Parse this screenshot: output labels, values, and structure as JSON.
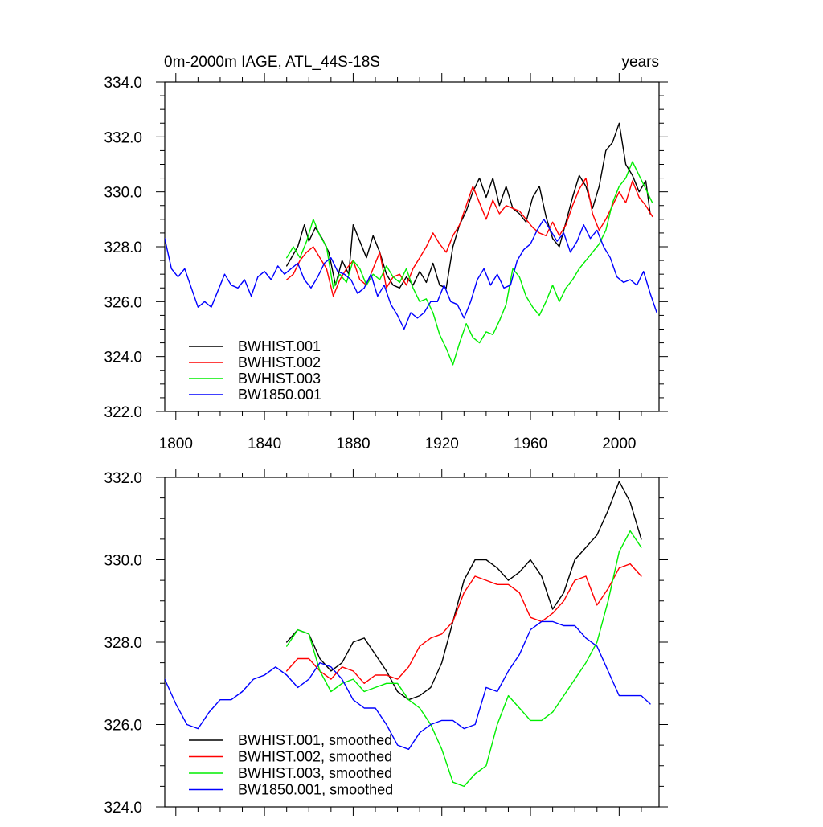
{
  "chart_data": [
    {
      "type": "line",
      "title": "0m-2000m IAGE, ATL_44S-18S",
      "units": "years",
      "xlim": [
        1795,
        2018
      ],
      "ylim": [
        322,
        334
      ],
      "x_ticks": [
        1800,
        1840,
        1880,
        1920,
        1960,
        2000
      ],
      "x_tick_labels": [
        "1800",
        "1840",
        "1880",
        "1920",
        "1960",
        "2000"
      ],
      "y_ticks": [
        322,
        324,
        326,
        328,
        330,
        332,
        334
      ],
      "y_tick_labels": [
        "322.0",
        "324.0",
        "326.0",
        "328.0",
        "330.0",
        "332.0",
        "334.0"
      ],
      "legend_position": "bottom-left",
      "series": [
        {
          "name": "BWHIST.001",
          "color": "#000000",
          "x": [
            1850,
            1855,
            1858,
            1860,
            1863,
            1866,
            1869,
            1872,
            1875,
            1878,
            1880,
            1883,
            1886,
            1889,
            1892,
            1895,
            1898,
            1901,
            1904,
            1907,
            1910,
            1913,
            1916,
            1919,
            1922,
            1925,
            1928,
            1931,
            1934,
            1937,
            1940,
            1943,
            1946,
            1949,
            1952,
            1955,
            1958,
            1961,
            1964,
            1967,
            1970,
            1973,
            1976,
            1979,
            1982,
            1985,
            1988,
            1991,
            1994,
            1997,
            2000,
            2003,
            2006,
            2009,
            2012,
            2014
          ],
          "y": [
            327.3,
            328.0,
            328.8,
            328.2,
            328.7,
            328.3,
            327.8,
            326.6,
            327.5,
            327.0,
            328.8,
            328.2,
            327.6,
            328.4,
            327.8,
            327.0,
            326.6,
            326.5,
            326.9,
            326.6,
            327.1,
            326.7,
            327.4,
            326.6,
            326.5,
            328.0,
            328.8,
            329.3,
            330.0,
            330.5,
            329.8,
            330.5,
            329.5,
            330.2,
            329.4,
            329.2,
            328.9,
            329.8,
            330.2,
            329.1,
            328.3,
            328.0,
            328.9,
            329.8,
            330.6,
            330.2,
            329.4,
            330.2,
            331.5,
            331.8,
            332.5,
            331.0,
            330.6,
            330.0,
            330.4,
            329.2
          ]
        },
        {
          "name": "BWHIST.002",
          "color": "#ff0000",
          "x": [
            1850,
            1853,
            1856,
            1859,
            1862,
            1865,
            1868,
            1871,
            1874,
            1877,
            1880,
            1883,
            1886,
            1889,
            1892,
            1895,
            1898,
            1901,
            1904,
            1907,
            1910,
            1913,
            1916,
            1919,
            1922,
            1925,
            1928,
            1931,
            1934,
            1937,
            1940,
            1943,
            1946,
            1949,
            1952,
            1955,
            1958,
            1961,
            1964,
            1967,
            1970,
            1973,
            1976,
            1979,
            1982,
            1985,
            1988,
            1991,
            1994,
            1997,
            2000,
            2003,
            2006,
            2009,
            2012,
            2015
          ],
          "y": [
            326.8,
            327.0,
            327.5,
            327.8,
            328.0,
            327.6,
            327.2,
            326.2,
            326.8,
            327.2,
            327.5,
            326.8,
            326.6,
            327.2,
            327.8,
            326.5,
            326.9,
            327.0,
            326.6,
            327.2,
            327.6,
            328.0,
            328.5,
            328.1,
            327.8,
            328.4,
            328.8,
            329.5,
            330.2,
            329.6,
            329.0,
            329.7,
            329.2,
            329.5,
            329.4,
            329.3,
            329.0,
            328.7,
            328.5,
            328.4,
            328.9,
            328.4,
            328.8,
            329.5,
            330.1,
            330.5,
            329.2,
            328.6,
            329.0,
            329.5,
            330.0,
            329.6,
            330.4,
            329.8,
            329.5,
            329.1
          ]
        },
        {
          "name": "BWHIST.003",
          "color": "#00ee00",
          "x": [
            1850,
            1853,
            1856,
            1859,
            1862,
            1865,
            1868,
            1871,
            1874,
            1877,
            1880,
            1883,
            1886,
            1889,
            1892,
            1895,
            1898,
            1901,
            1904,
            1907,
            1910,
            1913,
            1916,
            1919,
            1922,
            1925,
            1928,
            1931,
            1934,
            1937,
            1940,
            1943,
            1946,
            1949,
            1952,
            1955,
            1958,
            1961,
            1964,
            1967,
            1970,
            1973,
            1976,
            1979,
            1982,
            1985,
            1988,
            1991,
            1994,
            1997,
            2000,
            2003,
            2006,
            2009,
            2012,
            2015
          ],
          "y": [
            327.6,
            328.0,
            327.6,
            328.2,
            329.0,
            328.4,
            328.0,
            326.5,
            327.0,
            326.7,
            327.5,
            327.2,
            326.6,
            327.0,
            326.8,
            327.3,
            326.9,
            326.7,
            327.2,
            326.5,
            326.0,
            326.1,
            325.6,
            324.8,
            324.3,
            323.7,
            324.5,
            325.2,
            324.7,
            324.5,
            324.9,
            324.8,
            325.3,
            325.9,
            327.2,
            326.9,
            326.2,
            325.8,
            325.5,
            326.0,
            326.6,
            326.0,
            326.5,
            326.8,
            327.2,
            327.5,
            327.8,
            328.1,
            328.6,
            329.6,
            330.2,
            330.5,
            331.1,
            330.6,
            330.1,
            329.6
          ]
        },
        {
          "name": "BW1850.001",
          "color": "#0000ff",
          "x": [
            1795,
            1798,
            1801,
            1804,
            1807,
            1810,
            1813,
            1816,
            1819,
            1822,
            1825,
            1828,
            1831,
            1834,
            1837,
            1840,
            1843,
            1846,
            1849,
            1852,
            1855,
            1858,
            1861,
            1864,
            1867,
            1870,
            1873,
            1876,
            1879,
            1882,
            1885,
            1888,
            1891,
            1894,
            1897,
            1900,
            1903,
            1906,
            1909,
            1912,
            1915,
            1918,
            1921,
            1924,
            1927,
            1930,
            1933,
            1936,
            1939,
            1942,
            1945,
            1948,
            1951,
            1954,
            1957,
            1960,
            1963,
            1966,
            1969,
            1972,
            1975,
            1978,
            1981,
            1984,
            1987,
            1990,
            1993,
            1996,
            1999,
            2002,
            2005,
            2008,
            2011,
            2014,
            2017
          ],
          "y": [
            328.3,
            327.2,
            326.9,
            327.2,
            326.5,
            325.8,
            326.0,
            325.8,
            326.4,
            327.0,
            326.6,
            326.5,
            326.8,
            326.2,
            326.9,
            327.1,
            326.8,
            327.3,
            327.0,
            327.2,
            327.4,
            326.8,
            326.5,
            326.9,
            327.4,
            327.6,
            327.1,
            327.0,
            326.8,
            326.3,
            326.5,
            327.0,
            326.2,
            326.6,
            325.9,
            325.5,
            325.0,
            325.6,
            325.4,
            325.6,
            326.0,
            326.0,
            326.6,
            326.0,
            325.9,
            325.4,
            326.0,
            326.8,
            327.2,
            326.6,
            327.0,
            326.5,
            326.6,
            327.5,
            327.9,
            328.1,
            328.6,
            329.0,
            328.6,
            328.2,
            328.5,
            327.8,
            328.2,
            328.8,
            328.3,
            328.6,
            328.0,
            327.6,
            326.9,
            326.7,
            326.8,
            326.6,
            327.1,
            326.3,
            325.6
          ]
        }
      ]
    },
    {
      "type": "line",
      "xlim": [
        1795,
        2018
      ],
      "ylim": [
        324,
        332
      ],
      "x_ticks": [
        1800,
        1840,
        1880,
        1920,
        1960,
        2000
      ],
      "y_ticks": [
        324,
        326,
        328,
        330,
        332
      ],
      "y_tick_labels": [
        "324.0",
        "326.0",
        "328.0",
        "330.0",
        "332.0"
      ],
      "legend_position": "bottom-left",
      "series": [
        {
          "name": "BWHIST.001, smoothed",
          "color": "#000000",
          "x": [
            1850,
            1855,
            1860,
            1865,
            1870,
            1875,
            1880,
            1885,
            1890,
            1895,
            1900,
            1905,
            1910,
            1915,
            1920,
            1925,
            1930,
            1935,
            1940,
            1945,
            1950,
            1955,
            1960,
            1965,
            1970,
            1975,
            1980,
            1985,
            1990,
            1995,
            2000,
            2005,
            2010
          ],
          "y": [
            328.0,
            328.3,
            328.2,
            327.6,
            327.3,
            327.5,
            328.0,
            328.1,
            327.7,
            327.3,
            326.8,
            326.6,
            326.7,
            326.9,
            327.5,
            328.5,
            329.5,
            330.0,
            330.0,
            329.8,
            329.5,
            329.7,
            330.0,
            329.6,
            328.8,
            329.2,
            330.0,
            330.3,
            330.6,
            331.2,
            331.9,
            331.4,
            330.5
          ]
        },
        {
          "name": "BWHIST.002, smoothed",
          "color": "#ff0000",
          "x": [
            1850,
            1855,
            1860,
            1865,
            1870,
            1875,
            1880,
            1885,
            1890,
            1895,
            1900,
            1905,
            1910,
            1915,
            1920,
            1925,
            1930,
            1935,
            1940,
            1945,
            1950,
            1955,
            1960,
            1965,
            1970,
            1975,
            1980,
            1985,
            1990,
            1995,
            2000,
            2005,
            2010
          ],
          "y": [
            327.3,
            327.6,
            327.6,
            327.3,
            327.1,
            327.4,
            327.3,
            327.0,
            327.2,
            327.2,
            327.1,
            327.4,
            327.9,
            328.1,
            328.2,
            328.5,
            329.2,
            329.6,
            329.5,
            329.4,
            329.4,
            329.2,
            328.6,
            328.5,
            328.7,
            329.0,
            329.5,
            329.6,
            328.9,
            329.3,
            329.8,
            329.9,
            329.6
          ]
        },
        {
          "name": "BWHIST.003, smoothed",
          "color": "#00ee00",
          "x": [
            1850,
            1855,
            1860,
            1865,
            1870,
            1875,
            1880,
            1885,
            1890,
            1895,
            1900,
            1905,
            1910,
            1915,
            1920,
            1925,
            1930,
            1935,
            1940,
            1945,
            1950,
            1955,
            1960,
            1965,
            1970,
            1975,
            1980,
            1985,
            1990,
            1995,
            2000,
            2005,
            2010
          ],
          "y": [
            327.9,
            328.3,
            328.2,
            327.3,
            326.8,
            327.0,
            327.1,
            326.8,
            326.9,
            327.0,
            327.0,
            326.6,
            326.4,
            326.0,
            325.4,
            324.6,
            324.5,
            324.8,
            325.0,
            326.0,
            326.7,
            326.4,
            326.1,
            326.1,
            326.3,
            326.7,
            327.1,
            327.5,
            328.0,
            329.0,
            330.2,
            330.7,
            330.3
          ]
        },
        {
          "name": "BW1850.001, smoothed",
          "color": "#0000ff",
          "x": [
            1795,
            1800,
            1805,
            1810,
            1815,
            1820,
            1825,
            1830,
            1835,
            1840,
            1845,
            1850,
            1855,
            1860,
            1865,
            1870,
            1875,
            1880,
            1885,
            1890,
            1895,
            1900,
            1905,
            1910,
            1915,
            1920,
            1925,
            1930,
            1935,
            1940,
            1945,
            1950,
            1955,
            1960,
            1965,
            1970,
            1975,
            1980,
            1985,
            1990,
            1995,
            2000,
            2005,
            2010,
            2014
          ],
          "y": [
            327.1,
            326.5,
            326.0,
            325.9,
            326.3,
            326.6,
            326.6,
            326.8,
            327.1,
            327.2,
            327.4,
            327.2,
            326.9,
            327.1,
            327.5,
            327.4,
            327.1,
            326.6,
            326.4,
            326.4,
            326.0,
            325.5,
            325.4,
            325.8,
            326.0,
            326.1,
            326.1,
            325.9,
            326.0,
            326.9,
            326.8,
            327.3,
            327.7,
            328.3,
            328.5,
            328.5,
            328.4,
            328.4,
            328.1,
            327.9,
            327.3,
            326.7,
            326.7,
            326.7,
            326.5
          ]
        }
      ]
    }
  ]
}
